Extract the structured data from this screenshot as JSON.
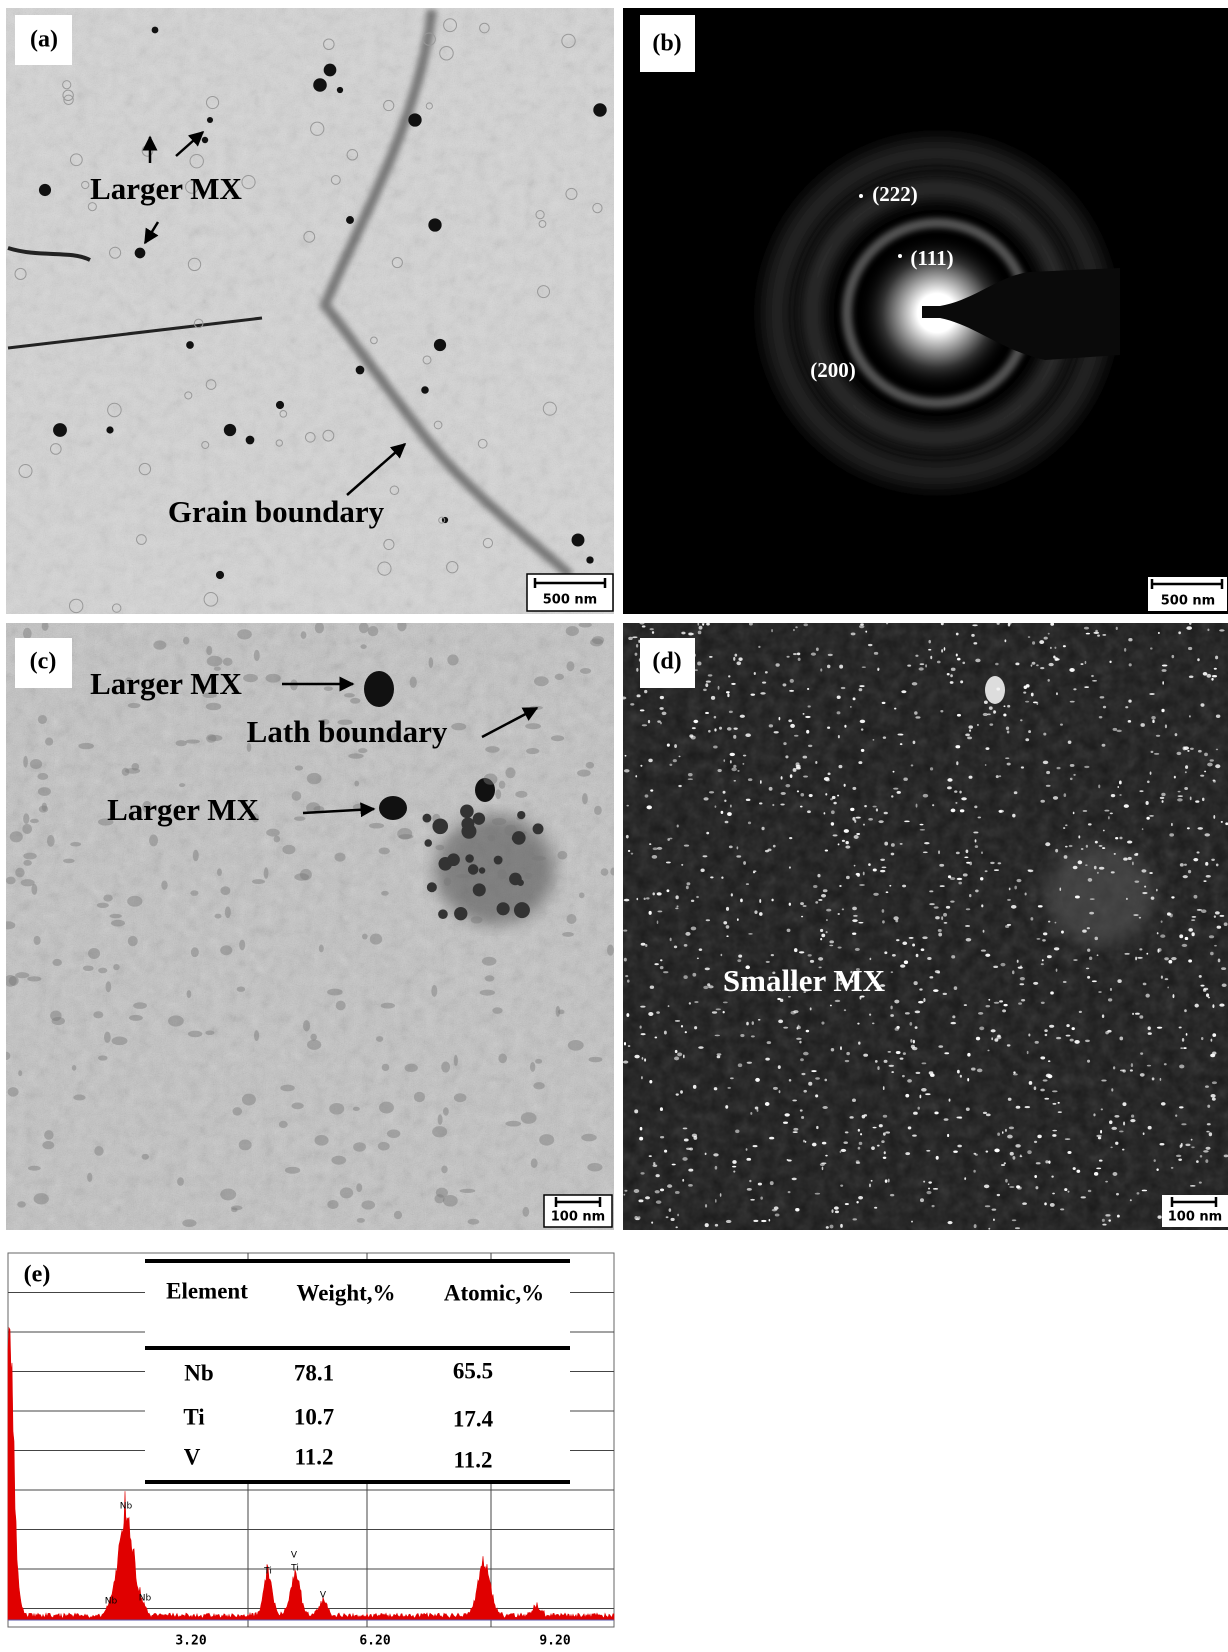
{
  "panels": [
    {
      "label": "(a)",
      "scale_bar": "500 nm",
      "annotations": [
        "Larger MX",
        "Grain boundary"
      ]
    },
    {
      "label": "(b)",
      "scale_bar": "500 nm",
      "annotations": [
        "(222)",
        "(111)",
        "(200)"
      ]
    },
    {
      "label": "(c)",
      "scale_bar": "100 nm",
      "annotations": [
        "Larger MX",
        "Lath boundary",
        "Larger MX"
      ]
    },
    {
      "label": "(d)",
      "scale_bar": "100 nm",
      "annotations": [
        "Smaller MX"
      ]
    }
  ],
  "spectrum": {
    "label": "(e)",
    "table": {
      "header": [
        "Element",
        "Weight,%",
        "Atomic,%"
      ],
      "rows": [
        [
          "Nb",
          78.1,
          65.5
        ],
        [
          "Ti",
          10.7,
          17.4
        ],
        [
          "V",
          11.2,
          11.2
        ]
      ]
    },
    "peak_labels": [
      "Nb",
      "Nb",
      "Nb",
      "Ti",
      "V",
      "Ti",
      "V"
    ],
    "x_tick_labels": [
      "3.20",
      "6.20",
      "9.20"
    ]
  }
}
